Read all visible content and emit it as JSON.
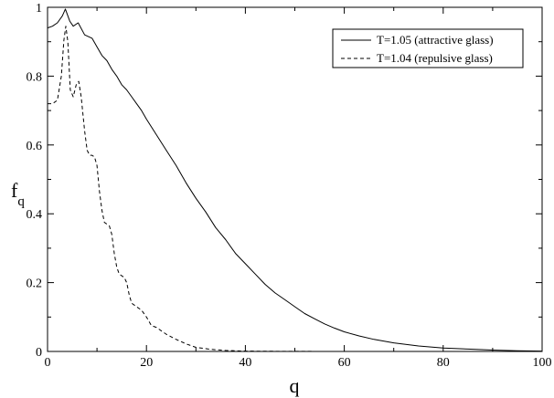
{
  "chart_data": {
    "type": "line",
    "xlabel": "q",
    "ylabel_main": "f",
    "ylabel_sub": "q",
    "xlim": [
      0,
      100
    ],
    "ylim": [
      0,
      1
    ],
    "x_ticks": [
      0,
      20,
      40,
      60,
      80,
      100
    ],
    "x_tick_labels": [
      "0",
      "20",
      "40",
      "60",
      "80",
      "100"
    ],
    "y_ticks": [
      0,
      0.2,
      0.4,
      0.6,
      0.8,
      1
    ],
    "y_tick_labels": [
      "0",
      "0.2",
      "0.4",
      "0.6",
      "0.8",
      "1"
    ],
    "grid": false,
    "legend_position": "top-right",
    "series": [
      {
        "name": "T=1.05 (attractive glass)",
        "line_style": "solid",
        "x": [
          0,
          1,
          2,
          3,
          3.6,
          4.5,
          5.2,
          6.2,
          7.5,
          9,
          10,
          11,
          12,
          13,
          14,
          15,
          16,
          17,
          18,
          19,
          20,
          22,
          24,
          26,
          28,
          30,
          32,
          34,
          36,
          38,
          40,
          42,
          44,
          46,
          48,
          50,
          52,
          54,
          56,
          58,
          60,
          63,
          66,
          70,
          75,
          80,
          85,
          90,
          95,
          100
        ],
        "y": [
          0.94,
          0.945,
          0.955,
          0.975,
          0.995,
          0.96,
          0.945,
          0.955,
          0.92,
          0.91,
          0.885,
          0.86,
          0.845,
          0.82,
          0.8,
          0.775,
          0.76,
          0.74,
          0.72,
          0.7,
          0.675,
          0.63,
          0.585,
          0.54,
          0.49,
          0.445,
          0.405,
          0.36,
          0.325,
          0.285,
          0.255,
          0.225,
          0.195,
          0.17,
          0.15,
          0.13,
          0.11,
          0.095,
          0.08,
          0.068,
          0.057,
          0.045,
          0.035,
          0.025,
          0.016,
          0.01,
          0.007,
          0.004,
          0.002,
          0.001
        ]
      },
      {
        "name": "T=1.04 (repulsive glass)",
        "line_style": "dashed",
        "x": [
          0,
          1,
          2,
          2.8,
          3.3,
          3.7,
          4.1,
          4.6,
          5.2,
          5.8,
          6.3,
          6.8,
          7.5,
          8,
          8.5,
          9,
          9.5,
          10,
          10.5,
          11,
          11.5,
          12,
          12.5,
          13,
          13.5,
          14,
          14.5,
          15,
          15.5,
          16,
          16.5,
          17,
          18,
          19,
          20,
          21,
          22,
          24,
          26,
          28,
          30,
          33,
          36,
          40,
          45,
          50,
          60,
          70,
          80,
          90,
          100
        ],
        "y": [
          0.72,
          0.72,
          0.73,
          0.8,
          0.905,
          0.945,
          0.9,
          0.76,
          0.74,
          0.775,
          0.785,
          0.74,
          0.64,
          0.585,
          0.57,
          0.57,
          0.565,
          0.54,
          0.465,
          0.41,
          0.375,
          0.37,
          0.365,
          0.34,
          0.285,
          0.245,
          0.225,
          0.22,
          0.215,
          0.2,
          0.165,
          0.14,
          0.13,
          0.12,
          0.1,
          0.075,
          0.07,
          0.05,
          0.035,
          0.022,
          0.012,
          0.006,
          0.003,
          0.001,
          0.0005,
          0.0002,
          0,
          0,
          0,
          0,
          0
        ]
      }
    ]
  }
}
